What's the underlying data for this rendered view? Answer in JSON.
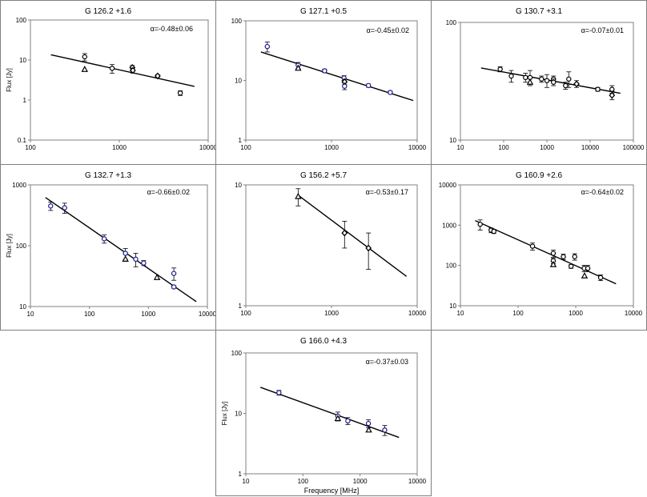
{
  "colors": {
    "frame": "#808080",
    "line": "#000000",
    "point_blue": "#1a1a8c",
    "point_black": "#000000"
  },
  "chart_data": [
    {
      "type": "scatter",
      "title": "G 126.2 +1.6",
      "alpha": "α=-0.48±0.06",
      "ylabel": "Flux [Jy]",
      "xlabel": "",
      "xscale": "log",
      "yscale": "log",
      "xlim": [
        100,
        10000
      ],
      "ylim": [
        0.1,
        100
      ],
      "xticks": [
        "100",
        "1000",
        "10000"
      ],
      "yticks": [
        "0.1",
        "1",
        "10",
        "100"
      ],
      "fit": {
        "x": [
          170,
          7000
        ],
        "y": [
          13.5,
          2.2
        ]
      },
      "points": [
        {
          "x": 408,
          "y": 12,
          "err": 2.5,
          "m": "circle",
          "c": "black"
        },
        {
          "x": 408,
          "y": 5.8,
          "err": 0,
          "m": "triangle",
          "c": "black"
        },
        {
          "x": 830,
          "y": 6.2,
          "err": 1.5,
          "m": "circle",
          "c": "black"
        },
        {
          "x": 1400,
          "y": 6.5,
          "err": 0.8,
          "m": "diamond",
          "c": "black"
        },
        {
          "x": 1420,
          "y": 5.5,
          "err": 0.8,
          "m": "diamond",
          "c": "black"
        },
        {
          "x": 2700,
          "y": 4.0,
          "err": 0.3,
          "m": "diamond",
          "c": "black"
        },
        {
          "x": 4850,
          "y": 1.5,
          "err": 0.2,
          "m": "circle",
          "c": "black"
        }
      ]
    },
    {
      "type": "scatter",
      "title": "G 127.1 +0.5",
      "alpha": "α=-0.45±0.02",
      "ylabel": "",
      "xlabel": "",
      "xscale": "log",
      "yscale": "log",
      "xlim": [
        100,
        10000
      ],
      "ylim": [
        1,
        100
      ],
      "xticks": [
        "100",
        "1000",
        "10000"
      ],
      "yticks": [
        "1",
        "10",
        "100"
      ],
      "fit": {
        "x": [
          150,
          9000
        ],
        "y": [
          30,
          4.6
        ]
      },
      "points": [
        {
          "x": 178,
          "y": 37,
          "err": 7,
          "m": "circle",
          "c": "blue"
        },
        {
          "x": 408,
          "y": 18,
          "err": 2,
          "m": "circle",
          "c": "blue"
        },
        {
          "x": 408,
          "y": 16,
          "err": 0,
          "m": "triangle",
          "c": "black"
        },
        {
          "x": 830,
          "y": 14.5,
          "err": 1,
          "m": "circle",
          "c": "blue"
        },
        {
          "x": 1400,
          "y": 11,
          "err": 1,
          "m": "circle",
          "c": "blue"
        },
        {
          "x": 1420,
          "y": 9.5,
          "err": 1,
          "m": "diamond",
          "c": "black"
        },
        {
          "x": 1420,
          "y": 8.0,
          "err": 1,
          "m": "circle",
          "c": "blue"
        },
        {
          "x": 2700,
          "y": 8.2,
          "err": 0.5,
          "m": "circle",
          "c": "blue"
        },
        {
          "x": 4850,
          "y": 6.3,
          "err": 0.3,
          "m": "circle",
          "c": "blue"
        }
      ]
    },
    {
      "type": "scatter",
      "title": "G 130.7 +3.1",
      "alpha": "α=-0.07±0.01",
      "ylabel": "",
      "xlabel": "",
      "xscale": "log",
      "yscale": "log",
      "xlim": [
        10,
        100000
      ],
      "ylim": [
        10,
        100
      ],
      "xticks": [
        "10",
        "100",
        "1000",
        "10000",
        "100000"
      ],
      "yticks": [
        "10",
        "100"
      ],
      "fit": {
        "x": [
          30,
          50000
        ],
        "y": [
          41,
          25
        ]
      },
      "points": [
        {
          "x": 83,
          "y": 40,
          "err": 2,
          "m": "circle",
          "c": "black"
        },
        {
          "x": 150,
          "y": 35,
          "err": 4,
          "m": "circle",
          "c": "black"
        },
        {
          "x": 320,
          "y": 34,
          "err": 3,
          "m": "circle",
          "c": "black"
        },
        {
          "x": 408,
          "y": 34,
          "err": 5,
          "m": "circle",
          "c": "black"
        },
        {
          "x": 408,
          "y": 31,
          "err": 0,
          "m": "triangle",
          "c": "black"
        },
        {
          "x": 750,
          "y": 33,
          "err": 2,
          "m": "circle",
          "c": "black"
        },
        {
          "x": 1000,
          "y": 32,
          "err": 4,
          "m": "circle",
          "c": "black"
        },
        {
          "x": 1420,
          "y": 33,
          "err": 2,
          "m": "circle",
          "c": "black"
        },
        {
          "x": 1420,
          "y": 31,
          "err": 2,
          "m": "circle",
          "c": "black"
        },
        {
          "x": 2700,
          "y": 29,
          "err": 2,
          "m": "circle",
          "c": "black"
        },
        {
          "x": 3200,
          "y": 33,
          "err": 5,
          "m": "circle",
          "c": "black"
        },
        {
          "x": 4850,
          "y": 30,
          "err": 2,
          "m": "diamond",
          "c": "black"
        },
        {
          "x": 15000,
          "y": 27,
          "err": 1,
          "m": "circle",
          "c": "black"
        },
        {
          "x": 32000,
          "y": 27,
          "err": 2,
          "m": "circle",
          "c": "black"
        },
        {
          "x": 32000,
          "y": 24,
          "err": 2,
          "m": "diamond",
          "c": "black"
        }
      ]
    },
    {
      "type": "scatter",
      "title": "G 132.7 +1.3",
      "alpha": "α=-0.66±0.02",
      "ylabel": "Flux [Jy]",
      "xlabel": "",
      "xscale": "log",
      "yscale": "log",
      "xlim": [
        10,
        10000
      ],
      "ylim": [
        10,
        1000
      ],
      "xticks": [
        "10",
        "100",
        "1000",
        "10000"
      ],
      "yticks": [
        "10",
        "100",
        "1000"
      ],
      "fit": {
        "x": [
          18,
          6500
        ],
        "y": [
          620,
          12
        ]
      },
      "points": [
        {
          "x": 22,
          "y": 450,
          "err": 70,
          "m": "circle",
          "c": "blue"
        },
        {
          "x": 38,
          "y": 420,
          "err": 80,
          "m": "circle",
          "c": "blue"
        },
        {
          "x": 178,
          "y": 130,
          "err": 20,
          "m": "circle",
          "c": "blue"
        },
        {
          "x": 408,
          "y": 75,
          "err": 15,
          "m": "circle",
          "c": "blue"
        },
        {
          "x": 408,
          "y": 60,
          "err": 0,
          "m": "triangle",
          "c": "black"
        },
        {
          "x": 610,
          "y": 60,
          "err": 15,
          "m": "circle",
          "c": "blue"
        },
        {
          "x": 830,
          "y": 52,
          "err": 5,
          "m": "circle",
          "c": "blue"
        },
        {
          "x": 1400,
          "y": 30,
          "err": 0,
          "m": "triangle",
          "c": "black"
        },
        {
          "x": 2700,
          "y": 35,
          "err": 8,
          "m": "circle",
          "c": "blue"
        },
        {
          "x": 2700,
          "y": 21,
          "err": 1,
          "m": "circle",
          "c": "blue"
        }
      ]
    },
    {
      "type": "scatter",
      "title": "G 156.2 +5.7",
      "alpha": "α=-0.53±0.17",
      "ylabel": "",
      "xlabel": "",
      "xscale": "log",
      "yscale": "log",
      "xlim": [
        100,
        10000
      ],
      "ylim": [
        1,
        10
      ],
      "xticks": [
        "100",
        "1000",
        "10000"
      ],
      "yticks": [
        "1",
        "10"
      ],
      "fit": {
        "x": [
          400,
          7500
        ],
        "y": [
          8.3,
          1.75
        ]
      },
      "points": [
        {
          "x": 408,
          "y": 8.0,
          "err": 1.3,
          "m": "triangle",
          "c": "black"
        },
        {
          "x": 1420,
          "y": 4.0,
          "err": 1.0,
          "m": "diamond",
          "c": "black"
        },
        {
          "x": 2700,
          "y": 3.0,
          "err": 1.0,
          "m": "diamond",
          "c": "black"
        }
      ]
    },
    {
      "type": "scatter",
      "title": "G 160.9 +2.6",
      "alpha": "α=-0.64±0.02",
      "ylabel": "",
      "xlabel": "",
      "xscale": "log",
      "yscale": "log",
      "xlim": [
        10,
        10000
      ],
      "ylim": [
        10,
        10000
      ],
      "xticks": [
        "10",
        "100",
        "1000",
        "10000"
      ],
      "yticks": [
        "10",
        "100",
        "1000",
        "10000"
      ],
      "fit": {
        "x": [
          18,
          5000
        ],
        "y": [
          1300,
          35
        ]
      },
      "points": [
        {
          "x": 22,
          "y": 1050,
          "err": 300,
          "m": "circle",
          "c": "black"
        },
        {
          "x": 34,
          "y": 750,
          "err": 100,
          "m": "circle",
          "c": "black"
        },
        {
          "x": 38,
          "y": 700,
          "err": 80,
          "m": "circle",
          "c": "black"
        },
        {
          "x": 178,
          "y": 300,
          "err": 60,
          "m": "circle",
          "c": "black"
        },
        {
          "x": 408,
          "y": 200,
          "err": 40,
          "m": "circle",
          "c": "black"
        },
        {
          "x": 408,
          "y": 130,
          "err": 20,
          "m": "circle",
          "c": "black"
        },
        {
          "x": 408,
          "y": 105,
          "err": 0,
          "m": "triangle",
          "c": "black"
        },
        {
          "x": 610,
          "y": 165,
          "err": 25,
          "m": "circle",
          "c": "black"
        },
        {
          "x": 830,
          "y": 95,
          "err": 10,
          "m": "circle",
          "c": "black"
        },
        {
          "x": 960,
          "y": 165,
          "err": 30,
          "m": "circle",
          "c": "black"
        },
        {
          "x": 1400,
          "y": 85,
          "err": 15,
          "m": "circle",
          "c": "black"
        },
        {
          "x": 1420,
          "y": 55,
          "err": 0,
          "m": "triangle",
          "c": "black"
        },
        {
          "x": 1620,
          "y": 85,
          "err": 15,
          "m": "circle",
          "c": "black"
        },
        {
          "x": 2700,
          "y": 50,
          "err": 8,
          "m": "circle",
          "c": "black"
        }
      ]
    },
    {
      "type": "scatter",
      "title": "G 166.0 +4.3",
      "alpha": "α=-0.37±0.03",
      "ylabel": "Flux [Jy]",
      "xlabel": "Frequency [MHz]",
      "xscale": "log",
      "yscale": "log",
      "xlim": [
        10,
        10000
      ],
      "ylim": [
        1,
        100
      ],
      "xticks": [
        "10",
        "100",
        "1000",
        "10000"
      ],
      "yticks": [
        "1",
        "10",
        "100"
      ],
      "fit": {
        "x": [
          18,
          4800
        ],
        "y": [
          27,
          4.0
        ]
      },
      "points": [
        {
          "x": 38,
          "y": 22,
          "err": 2,
          "m": "circle",
          "c": "blue"
        },
        {
          "x": 408,
          "y": 9,
          "err": 1.5,
          "m": "circle",
          "c": "blue"
        },
        {
          "x": 408,
          "y": 8.2,
          "err": 0,
          "m": "triangle",
          "c": "black"
        },
        {
          "x": 610,
          "y": 7.5,
          "err": 1,
          "m": "circle",
          "c": "blue"
        },
        {
          "x": 1400,
          "y": 6.8,
          "err": 1,
          "m": "circle",
          "c": "blue"
        },
        {
          "x": 1420,
          "y": 5.3,
          "err": 0,
          "m": "triangle",
          "c": "black"
        },
        {
          "x": 2700,
          "y": 5.3,
          "err": 1,
          "m": "circle",
          "c": "blue"
        }
      ]
    }
  ]
}
